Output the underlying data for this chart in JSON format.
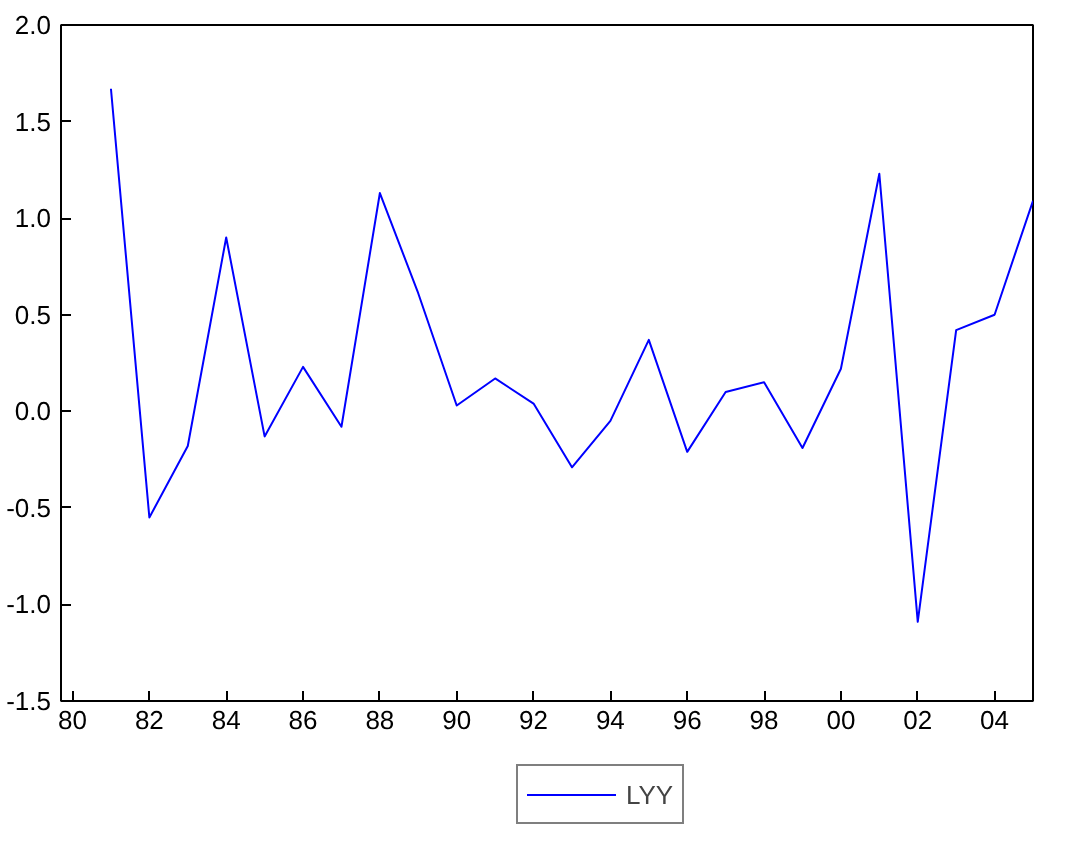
{
  "chart_data": {
    "type": "line",
    "x": [
      1981,
      1982,
      1983,
      1984,
      1985,
      1986,
      1987,
      1988,
      1989,
      1990,
      1991,
      1992,
      1993,
      1994,
      1995,
      1996,
      1997,
      1998,
      1999,
      2000,
      2001,
      2002,
      2003,
      2004,
      2005
    ],
    "series": [
      {
        "name": "LYY",
        "color": "#0000ff",
        "values": [
          1.67,
          -0.55,
          -0.18,
          0.9,
          -0.13,
          0.23,
          -0.08,
          1.13,
          0.61,
          0.03,
          0.17,
          0.04,
          -0.29,
          -0.05,
          0.37,
          -0.21,
          0.1,
          0.15,
          -0.19,
          0.22,
          1.23,
          -1.09,
          0.42,
          0.5,
          1.09
        ]
      }
    ],
    "xlim": [
      1979.7,
      2005
    ],
    "xticks": [
      {
        "value": 1980,
        "label": "80"
      },
      {
        "value": 1982,
        "label": "82"
      },
      {
        "value": 1984,
        "label": "84"
      },
      {
        "value": 1986,
        "label": "86"
      },
      {
        "value": 1988,
        "label": "88"
      },
      {
        "value": 1990,
        "label": "90"
      },
      {
        "value": 1992,
        "label": "92"
      },
      {
        "value": 1994,
        "label": "94"
      },
      {
        "value": 1996,
        "label": "96"
      },
      {
        "value": 1998,
        "label": "98"
      },
      {
        "value": 2000,
        "label": "00"
      },
      {
        "value": 2002,
        "label": "02"
      },
      {
        "value": 2004,
        "label": "04"
      }
    ],
    "ylim": [
      -1.5,
      2.0
    ],
    "yticks": [
      {
        "value": -1.5,
        "label": "-1.5"
      },
      {
        "value": -1.0,
        "label": "-1.0"
      },
      {
        "value": -0.5,
        "label": "-0.5"
      },
      {
        "value": 0.0,
        "label": "0.0"
      },
      {
        "value": 0.5,
        "label": "0.5"
      },
      {
        "value": 1.0,
        "label": "1.0"
      },
      {
        "value": 1.5,
        "label": "1.5"
      },
      {
        "value": 2.0,
        "label": "2.0"
      }
    ],
    "grid": false,
    "legend": "bottom",
    "line_style": "solid"
  }
}
